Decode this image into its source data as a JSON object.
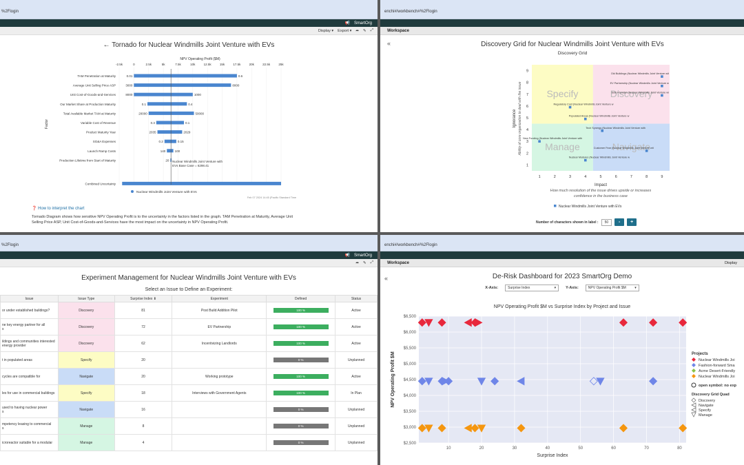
{
  "p1": {
    "url": "%2Flogin",
    "topbar": "SmartOrg",
    "toolbar": {
      "display": "Display",
      "export": "Export"
    },
    "title": "← Tornado for Nuclear Windmills Joint Venture with EVs",
    "chart_data": {
      "type": "bar",
      "xlabel": "NPV Operating Profit ($M)",
      "ylabel": "Factor",
      "xticks": [
        "-2.5k",
        "0",
        "2.5k",
        "5k",
        "7.5k",
        "10k",
        "12.5k",
        "15k",
        "17.5k",
        "20k",
        "22.5k",
        "25k"
      ],
      "xlim": [
        -2500,
        25000
      ],
      "base": 6298.41,
      "factors": [
        {
          "name": "TAM Penetration at Maturity",
          "low_label": "0.01",
          "high_label": "0.6",
          "low": 0,
          "high": 17500
        },
        {
          "name": "Average Unit Selling Price ASP",
          "low_label": "3000",
          "high_label": "8000",
          "low": 0,
          "high": 16500
        },
        {
          "name": "Unit Cost-of-Goods-and-Services",
          "low_label": "8000",
          "high_label": "1000",
          "low": 0,
          "high": 10000
        },
        {
          "name": "Our Market Share at Production Maturity",
          "low_label": "0.1",
          "high_label": "0.4",
          "low": 2300,
          "high": 9000
        },
        {
          "name": "Total Available Market TAM at Maturity",
          "low_label": "20000",
          "high_label": "50000",
          "low": 2500,
          "high": 10200
        },
        {
          "name": "Variable Cost of Revenue",
          "low_label": "0.3",
          "high_label": "0.1",
          "low": 3800,
          "high": 8500
        },
        {
          "name": "Product Maturity Year",
          "low_label": "2035",
          "high_label": "2029",
          "low": 4000,
          "high": 8200
        },
        {
          "name": "SG&A Expenses",
          "low_label": "0.2",
          "high_label": "0.15",
          "low": 5200,
          "high": 7200
        },
        {
          "name": "Launch Ramp Costs",
          "low_label": "140",
          "high_label": "100",
          "low": 5600,
          "high": 6700
        },
        {
          "name": "Production Lifetime from Start of Maturity",
          "low_label": "20",
          "high_label": "",
          "low": 6200,
          "high": 6400
        }
      ],
      "combined": {
        "name": "Combined Uncertainty",
        "low": -2000,
        "high": 25000
      },
      "annotation": [
        "Nuclear Windmills Joint Venture with",
        "EVs Base Case = 6298.41"
      ],
      "legend": "Nuclear Windmills Joint Venture with EVs",
      "timestamp": "Feb 07 2024 14:45 (Pacific Standard Time"
    },
    "help_title": "How to interpret the chart",
    "help_text_1": "Tornado Diagram shows how sensitive NPV Operating Profit is to the uncertainty in the factors listed in the graph. TAM Penetration at Maturity, Average Unit",
    "help_text_2": "Selling Price ASP, Unit Cost-of-Goods-and-Services have the most impact on the uncertainty in NPV Operating Profit."
  },
  "p2": {
    "url": "enchi#/workbench#%2Flogin",
    "workspace": "Workspace",
    "title": "Discovery Grid for Nuclear Windmills Joint Venture with EVs",
    "subtitle": "Discovery Grid",
    "ylabel": "Ignorance",
    "ysub": "Ability of core organization to deal with the issue",
    "xlabel": "Impact",
    "xsub1": "How much resolution of the issue drives upside or increases",
    "xsub2": "confidence in the business case",
    "quadrants": {
      "tl": "Specify",
      "tr": "Discovery",
      "bl": "Manage",
      "br": "Navigate"
    },
    "colors": {
      "tl": "#fdfcc4",
      "tr": "#fbe1ec",
      "bl": "#d5f6e3",
      "br": "#c9dcf7"
    },
    "ticks": [
      "1",
      "2",
      "3",
      "4",
      "5",
      "6",
      "7",
      "8",
      "9"
    ],
    "points": [
      {
        "x": 9,
        "y": 8.5,
        "label": "Old Buildings (Nuclear Windmills Joint Venture wit"
      },
      {
        "x": 9,
        "y": 7.7,
        "label": "EV Partnership (Nuclear Windmills Joint Venture w"
      },
      {
        "x": 9,
        "y": 6.9,
        "label": "Sole Provider (Nuclear Windmills Joint Venture wi"
      },
      {
        "x": 3,
        "y": 5.9,
        "label": "Regulatory Cost (Nuclear Windmills Joint Venture w"
      },
      {
        "x": 4,
        "y": 4.9,
        "label": "Populated Areas (Nuclear Windmills Joint Venture w"
      },
      {
        "x": 5.1,
        "y": 3.9,
        "label": "Tech Synergy (Nuclear Windmills Joint Venture with"
      },
      {
        "x": 1,
        "y": 3.0,
        "label": "New Funding (Nuclear Windmills Joint Venture with"
      },
      {
        "x": 8,
        "y": 2.2,
        "label": "Customer Fear (Nuclear Windmills Joint Venture wit"
      },
      {
        "x": 4,
        "y": 1.4,
        "label": "Nuclear Modules (Nuclear Windmills Joint Venture w"
      }
    ],
    "legend": "Nuclear Windmills Joint Venture with EVs",
    "chars_label": "Number of characters shown in label :",
    "chars_value": "50",
    "minus": "-",
    "plus": "+"
  },
  "p3": {
    "url": "%2Flogin",
    "title": "Experiment Management for Nuclear Windmills Joint Venture with EVs",
    "subtitle": "Select an Issue to Define an Experiment:",
    "headers": [
      "Issue",
      "Issue Type",
      "Surprise Index ⬇",
      "Experiment",
      "Defined",
      "Status"
    ],
    "rows": [
      {
        "issue": [
          "or under established buildings?"
        ],
        "type": "Discovery",
        "si": "81",
        "exp": "Post Build Addition Pilot",
        "defined": "100 %",
        "status": "Active"
      },
      {
        "issue": [
          "ne key energy partner for all",
          "s"
        ],
        "type": "Discovery",
        "si": "72",
        "exp": "EV Partnership",
        "defined": "100 %",
        "status": "Active"
      },
      {
        "issue": [
          "ildings and communities interested",
          "energy provider"
        ],
        "type": "Discovery",
        "si": "62",
        "exp": "Incentivizing Landlords",
        "defined": "100 %",
        "status": "Active"
      },
      {
        "issue": [
          "t in populated areas"
        ],
        "type": "Specify",
        "si": "20",
        "exp": "",
        "defined": "0 %",
        "status": "Unplanned"
      },
      {
        "issue": [
          "cycles are compatible for"
        ],
        "type": "Navigate",
        "si": "20",
        "exp": "Working prototype",
        "defined": "100 %",
        "status": "Active"
      },
      {
        "issue": [
          "les for use in commercial buildings"
        ],
        "type": "Specify",
        "si": "18",
        "exp": "Interviews with Government Agents",
        "defined": "100 %",
        "status": "In Plan"
      },
      {
        "issue": [
          "used to having nuclear power",
          "s"
        ],
        "type": "Navigate",
        "si": "16",
        "exp": "",
        "defined": "0 %",
        "status": "Unplanned"
      },
      {
        "issue": [
          "mpetency leasing to commercial",
          "s"
        ],
        "type": "Manage",
        "si": "8",
        "exp": "",
        "defined": "0 %",
        "status": "Unplanned"
      },
      {
        "issue": [
          "icroreactor suitable for a modular"
        ],
        "type": "Manage",
        "si": "4",
        "exp": "",
        "defined": "0 %",
        "status": "Unplanned"
      }
    ],
    "type_colors": {
      "Discovery": "#fbe1ec",
      "Specify": "#fdfcc4",
      "Navigate": "#c9dcf7",
      "Manage": "#d5f6e3"
    }
  },
  "p4": {
    "url": "enchi#/workbench#%2Flogin",
    "workspace": "Workspace",
    "display": "Display",
    "title": "De-Risk Dashboard for 2023 SmartOrg Demo",
    "xaxis_label": "X-Axis:",
    "xaxis_value": "Surprise Index",
    "yaxis_label": "Y-Axis:",
    "yaxis_value": "NPV Operating Profit $M",
    "chart_data": {
      "type": "scatter",
      "title": "NPV Operating Profit $M vs Surprise Index by Project and Issue",
      "xlabel": "Surprise Index",
      "ylabel": "NPV Operating Profit $M",
      "xlim": [
        1,
        82
      ],
      "ylim": [
        2500,
        6500
      ],
      "xticks": [
        10,
        20,
        30,
        40,
        50,
        60,
        70,
        80
      ],
      "yticks": [
        "$2,500",
        "$3,000",
        "$3,500",
        "$4,000",
        "$4,500",
        "$5,000",
        "$5,500",
        "$6,000",
        "$6,500"
      ],
      "series": [
        {
          "name": "Nuclear Windmills Joi",
          "color": "#e8283c",
          "y": 6300,
          "x": [
            2,
            4,
            8,
            16,
            18,
            19,
            63,
            72,
            81
          ]
        },
        {
          "name": "Fashion-forward Sma",
          "color": "#6f86e8",
          "y": 4450,
          "x": [
            2,
            4,
            8,
            9,
            10,
            20,
            24,
            32,
            54,
            56,
            72
          ]
        },
        {
          "name": "Acme Desert-Friendly",
          "color": "#8bc34a",
          "y": 4450,
          "x": []
        },
        {
          "name": "Nuclear Windmills Joi",
          "color": "#f5960f",
          "y": 2970,
          "x": [
            2,
            4,
            8,
            16,
            18,
            20,
            32,
            63,
            81
          ]
        }
      ],
      "legend_title": "Projects",
      "legend_open": "open symbol: no exp",
      "legend_quad_title": "Discovery Grid Quad",
      "legend_quads": [
        "Discovery",
        "Navigate",
        "Specify",
        "Manage"
      ]
    }
  }
}
